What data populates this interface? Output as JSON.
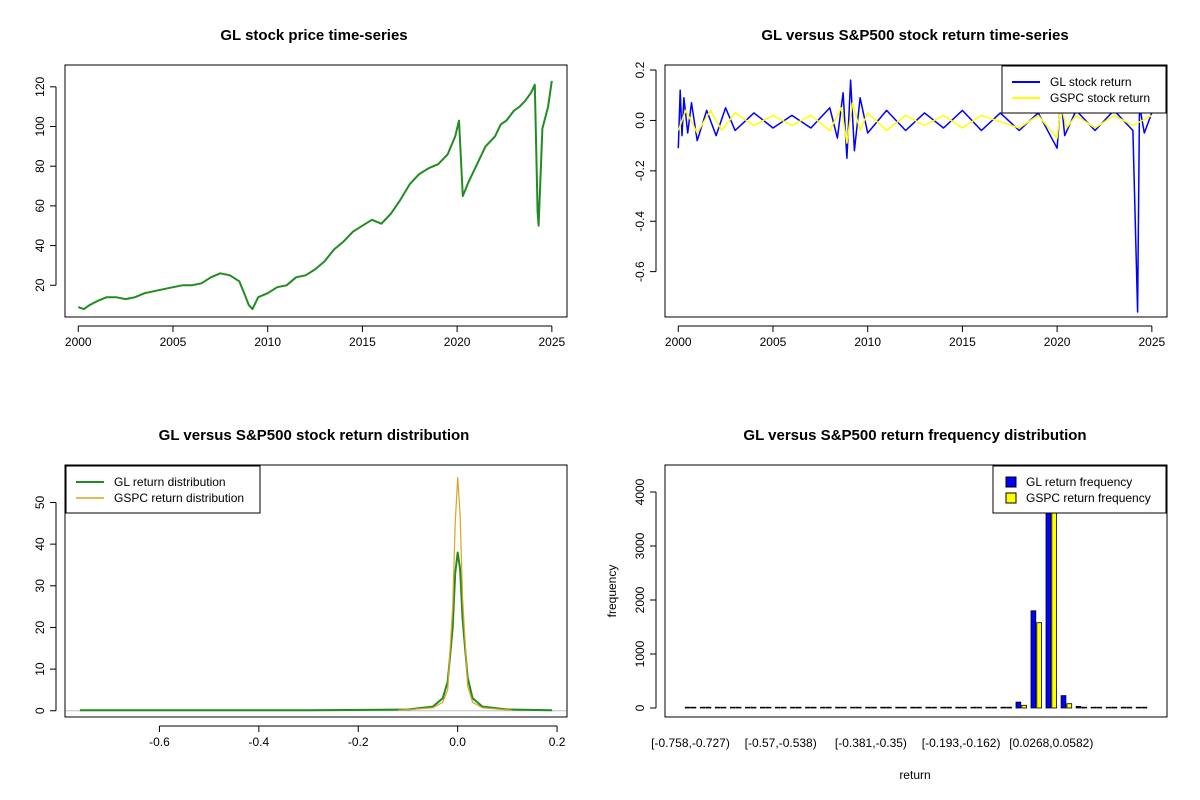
{
  "figure": {
    "background": "#ffffff"
  },
  "chart_data": [
    {
      "id": "p1",
      "type": "line",
      "title": "GL stock price time-series",
      "xlabel": "",
      "ylabel": "",
      "xlim": [
        1999.3,
        2025.8
      ],
      "ylim": [
        4,
        131
      ],
      "xticks": [
        2000,
        2005,
        2010,
        2015,
        2020,
        2025
      ],
      "xtick_labels": [
        "2000",
        "2005",
        "2010",
        "2015",
        "2020",
        "2025"
      ],
      "yticks": [
        20,
        40,
        60,
        80,
        100,
        120
      ],
      "ytick_labels": [
        "20",
        "40",
        "60",
        "80",
        "100",
        "120"
      ],
      "series": [
        {
          "name": "GL price",
          "color": "#228B22",
          "x": [
            2000.0,
            2000.3,
            2000.6,
            2001.0,
            2001.5,
            2002.0,
            2002.5,
            2003.0,
            2003.5,
            2004.0,
            2004.5,
            2005.0,
            2005.5,
            2006.0,
            2006.5,
            2007.0,
            2007.5,
            2008.0,
            2008.5,
            2008.8,
            2009.0,
            2009.2,
            2009.5,
            2010.0,
            2010.5,
            2011.0,
            2011.5,
            2012.0,
            2012.5,
            2013.0,
            2013.5,
            2014.0,
            2014.5,
            2015.0,
            2015.5,
            2016.0,
            2016.5,
            2017.0,
            2017.5,
            2018.0,
            2018.5,
            2019.0,
            2019.5,
            2019.9,
            2020.1,
            2020.3,
            2020.6,
            2021.0,
            2021.5,
            2022.0,
            2022.3,
            2022.6,
            2023.0,
            2023.3,
            2023.6,
            2023.9,
            2024.1,
            2024.25,
            2024.3,
            2024.5,
            2024.8,
            2025.0
          ],
          "y": [
            9,
            8,
            10,
            12,
            14,
            14,
            13,
            14,
            16,
            17,
            18,
            19,
            20,
            20,
            21,
            24,
            26,
            25,
            22,
            15,
            10,
            8,
            14,
            16,
            19,
            20,
            24,
            25,
            28,
            32,
            38,
            42,
            47,
            50,
            53,
            51,
            56,
            63,
            71,
            76,
            79,
            81,
            86,
            95,
            103,
            65,
            72,
            80,
            90,
            95,
            101,
            103,
            108,
            110,
            113,
            117,
            121,
            57,
            50,
            99,
            110,
            123
          ]
        }
      ]
    },
    {
      "id": "p2",
      "type": "line",
      "title": "GL versus S&P500 stock return time-series",
      "xlabel": "",
      "ylabel": "",
      "xlim": [
        1999.3,
        2025.8
      ],
      "ylim": [
        -0.78,
        0.22
      ],
      "xticks": [
        2000,
        2005,
        2010,
        2015,
        2020,
        2025
      ],
      "xtick_labels": [
        "2000",
        "2005",
        "2010",
        "2015",
        "2020",
        "2025"
      ],
      "yticks": [
        -0.6,
        -0.4,
        -0.2,
        0.0,
        0.2
      ],
      "ytick_labels": [
        "-0.6",
        "-0.4",
        "-0.2",
        "0.0",
        "0.2"
      ],
      "legend": {
        "placement": "top-right",
        "entries": [
          {
            "label": "GL stock return",
            "color": "#0000FF"
          },
          {
            "label": "GSPC stock return",
            "color": "#FFFF00"
          }
        ]
      },
      "series": [
        {
          "name": "GL stock return",
          "color": "#0000FF",
          "x": [
            2000.0,
            2000.1,
            2000.2,
            2000.3,
            2000.5,
            2000.7,
            2001.0,
            2001.5,
            2002.0,
            2002.5,
            2003.0,
            2004.0,
            2005.0,
            2006.0,
            2007.0,
            2008.0,
            2008.4,
            2008.7,
            2008.9,
            2009.1,
            2009.3,
            2009.6,
            2010.0,
            2011.0,
            2012.0,
            2013.0,
            2014.0,
            2015.0,
            2016.0,
            2017.0,
            2018.0,
            2019.0,
            2020.0,
            2020.2,
            2020.4,
            2021.0,
            2022.0,
            2023.0,
            2024.0,
            2024.25,
            2024.35,
            2024.6,
            2025.0
          ],
          "y": [
            -0.11,
            0.12,
            -0.06,
            0.09,
            -0.05,
            0.07,
            -0.08,
            0.04,
            -0.06,
            0.05,
            -0.04,
            0.03,
            -0.03,
            0.02,
            -0.03,
            0.05,
            -0.07,
            0.11,
            -0.15,
            0.16,
            -0.12,
            0.09,
            -0.05,
            0.04,
            -0.04,
            0.03,
            -0.03,
            0.04,
            -0.04,
            0.03,
            -0.04,
            0.03,
            -0.11,
            0.09,
            -0.06,
            0.04,
            -0.04,
            0.04,
            -0.04,
            -0.76,
            0.06,
            -0.05,
            0.03
          ]
        },
        {
          "name": "GSPC stock return",
          "color": "#FFFF00",
          "x": [
            2000.0,
            2000.4,
            2001.0,
            2001.7,
            2002.3,
            2003.0,
            2004.0,
            2005.0,
            2006.0,
            2007.0,
            2008.0,
            2008.6,
            2008.9,
            2009.2,
            2009.6,
            2010.0,
            2011.0,
            2012.0,
            2013.0,
            2014.0,
            2015.0,
            2016.0,
            2018.0,
            2019.0,
            2020.0,
            2020.2,
            2020.5,
            2021.0,
            2022.0,
            2023.0,
            2024.0,
            2025.0
          ],
          "y": [
            -0.04,
            0.04,
            -0.05,
            0.04,
            -0.04,
            0.03,
            -0.02,
            0.02,
            -0.02,
            0.02,
            -0.04,
            0.05,
            -0.09,
            0.07,
            -0.04,
            0.03,
            -0.04,
            0.02,
            -0.02,
            0.02,
            -0.03,
            0.02,
            -0.03,
            0.02,
            -0.07,
            0.06,
            -0.03,
            0.02,
            -0.03,
            0.02,
            -0.02,
            0.02
          ]
        }
      ]
    },
    {
      "id": "p3",
      "type": "line",
      "title": "GL versus S&P500 stock return distribution",
      "xlabel": "",
      "ylabel": "",
      "xlim": [
        -0.79,
        0.22
      ],
      "ylim": [
        -1.5,
        59
      ],
      "xticks": [
        -0.6,
        -0.4,
        -0.2,
        0.0,
        0.2
      ],
      "xtick_labels": [
        "-0.6",
        "-0.4",
        "-0.2",
        "0.0",
        "0.2"
      ],
      "yticks": [
        0,
        10,
        20,
        30,
        40,
        50
      ],
      "ytick_labels": [
        "0",
        "10",
        "20",
        "30",
        "40",
        "50"
      ],
      "legend": {
        "placement": "top-left",
        "entries": [
          {
            "label": "GL return distribution",
            "color": "#228B22"
          },
          {
            "label": "GSPC return distribution",
            "color": "#DAA520"
          }
        ]
      },
      "series": [
        {
          "name": "GL return distribution",
          "color": "#228B22",
          "x": [
            -0.76,
            -0.3,
            -0.1,
            -0.05,
            -0.03,
            -0.02,
            -0.01,
            -0.005,
            0.0,
            0.005,
            0.01,
            0.02,
            0.03,
            0.05,
            0.1,
            0.19
          ],
          "y": [
            0.1,
            0.1,
            0.3,
            1.0,
            3.0,
            7.0,
            20.0,
            33.0,
            38.0,
            34.0,
            22.0,
            8.0,
            3.0,
            1.0,
            0.3,
            0.1
          ]
        },
        {
          "name": "GSPC return distribution",
          "color": "#DAA520",
          "x": [
            -0.12,
            -0.05,
            -0.03,
            -0.02,
            -0.01,
            -0.005,
            0.0,
            0.005,
            0.01,
            0.02,
            0.03,
            0.05,
            0.11
          ],
          "y": [
            0.1,
            0.7,
            2.0,
            5.0,
            25.0,
            45.0,
            56.0,
            47.0,
            27.0,
            6.0,
            2.0,
            0.7,
            0.1
          ]
        }
      ]
    },
    {
      "id": "p4",
      "type": "bar",
      "title": "GL versus S&P500 return frequency distribution",
      "xlabel": "return",
      "ylabel": "frequency",
      "ylim": [
        0,
        4500
      ],
      "yticks": [
        0,
        1000,
        2000,
        3000,
        4000
      ],
      "ytick_labels": [
        "0",
        "1000",
        "2000",
        "3000",
        "4000"
      ],
      "xtick_labels_shown": [
        "[-0.758,-0.727)",
        "[-0.57,-0.538)",
        "[-0.381,-0.35)",
        "[-0.193,-0.162)",
        "[0.0268,0.0582)"
      ],
      "xtick_positions": [
        0,
        6,
        12,
        18,
        24
      ],
      "legend": {
        "placement": "top-right",
        "entries": [
          {
            "label": "GL return frequency",
            "color": "#0000FF"
          },
          {
            "label": "GSPC return frequency",
            "color": "#FFFF00"
          }
        ]
      },
      "categories_count": 31,
      "series": [
        {
          "name": "GL return frequency",
          "color": "#0000FF",
          "values": [
            1,
            0,
            0,
            0,
            0,
            0,
            0,
            0,
            0,
            0,
            0,
            0,
            0,
            0,
            0,
            0,
            0,
            0,
            0,
            0,
            4,
            10,
            110,
            1800,
            4400,
            230,
            30,
            10,
            5,
            3,
            1
          ]
        },
        {
          "name": "GSPC return frequency",
          "color": "#FFFF00",
          "values": [
            0,
            0,
            0,
            0,
            0,
            0,
            0,
            0,
            0,
            0,
            0,
            0,
            0,
            0,
            0,
            0,
            0,
            0,
            0,
            0,
            0,
            2,
            50,
            1580,
            4400,
            80,
            5,
            1,
            0,
            0,
            0
          ]
        }
      ]
    }
  ]
}
